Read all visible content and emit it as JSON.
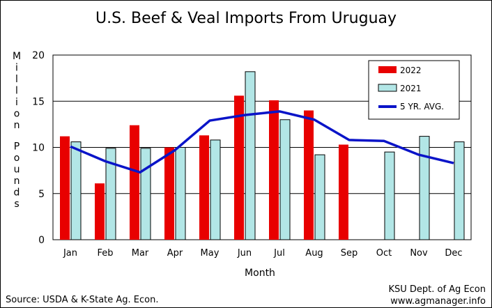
{
  "chart_data": {
    "type": "bar",
    "title": "U.S. Beef & Veal Imports From Uruguay",
    "ylabel": "Million Pounds",
    "xlabel": "Month",
    "ylim": [
      0,
      20
    ],
    "yticks": [
      0,
      5,
      10,
      15,
      20
    ],
    "categories": [
      "Jan",
      "Feb",
      "Mar",
      "Apr",
      "May",
      "Jun",
      "Jul",
      "Aug",
      "Sep",
      "Oct",
      "Nov",
      "Dec"
    ],
    "series": [
      {
        "name": "2022",
        "type": "bar",
        "color": "#e80000",
        "values": [
          11.2,
          6.1,
          12.4,
          10.0,
          11.3,
          15.6,
          15.1,
          14.0,
          10.3,
          null,
          null,
          null
        ]
      },
      {
        "name": "2021",
        "type": "bar",
        "color": "#b2e6e6",
        "values": [
          10.6,
          9.9,
          9.9,
          10.0,
          10.8,
          18.2,
          13.0,
          9.2,
          null,
          9.5,
          11.2,
          10.6
        ]
      },
      {
        "name": "5 YR. AVG.",
        "type": "line",
        "color": "#0a14c8",
        "values": [
          10.1,
          8.5,
          7.3,
          9.7,
          12.9,
          13.5,
          13.9,
          13.0,
          10.8,
          10.7,
          9.2,
          8.3
        ]
      }
    ],
    "legend": {
      "position": "top-right"
    },
    "grid": {
      "horizontal": true,
      "vertical": false
    }
  },
  "footer": {
    "source": "Source:  USDA & K-State Ag. Econ.",
    "credit_line1": "KSU Dept. of Ag Econ",
    "credit_line2": "www.agmanager.info"
  }
}
